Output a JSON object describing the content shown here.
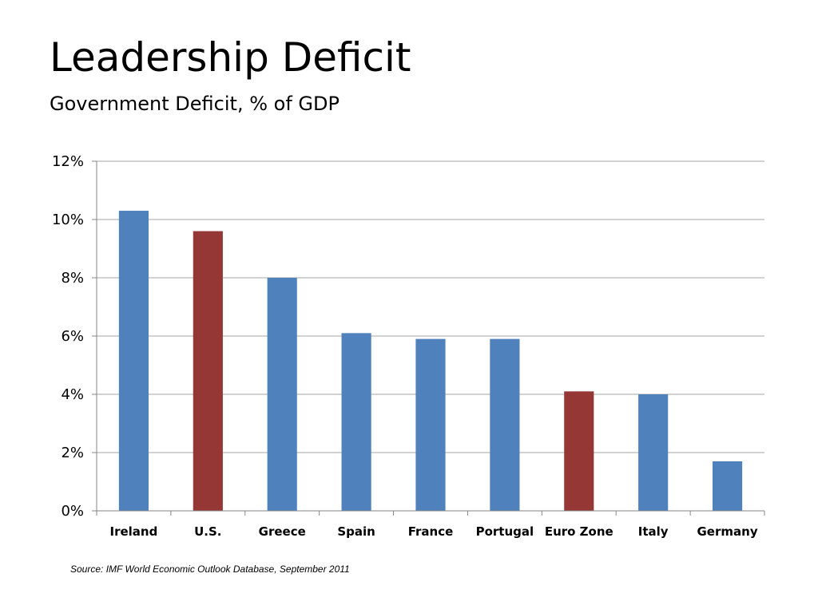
{
  "slide": {
    "title": "Leadership Deficit",
    "subtitle": "Government Deficit, % of GDP",
    "source": "Source: IMF World Economic Outlook Database, September 2011"
  },
  "chart_data": {
    "type": "bar",
    "title": "",
    "xlabel": "",
    "ylabel": "",
    "categories": [
      "Ireland",
      "U.S.",
      "Greece",
      "Spain",
      "France",
      "Portugal",
      "Euro Zone",
      "Italy",
      "Germany"
    ],
    "values": [
      10.3,
      9.6,
      8.0,
      6.1,
      5.9,
      5.9,
      4.1,
      4.0,
      1.7
    ],
    "bar_colors": [
      "#4f81bd",
      "#953735",
      "#4f81bd",
      "#4f81bd",
      "#4f81bd",
      "#4f81bd",
      "#953735",
      "#4f81bd",
      "#4f81bd"
    ],
    "ylim": [
      0,
      12
    ],
    "yticks": [
      0,
      2,
      4,
      6,
      8,
      10,
      12
    ],
    "ytick_labels": [
      "0%",
      "2%",
      "4%",
      "6%",
      "8%",
      "10%",
      "12%"
    ],
    "grid": true,
    "legend": "none"
  }
}
